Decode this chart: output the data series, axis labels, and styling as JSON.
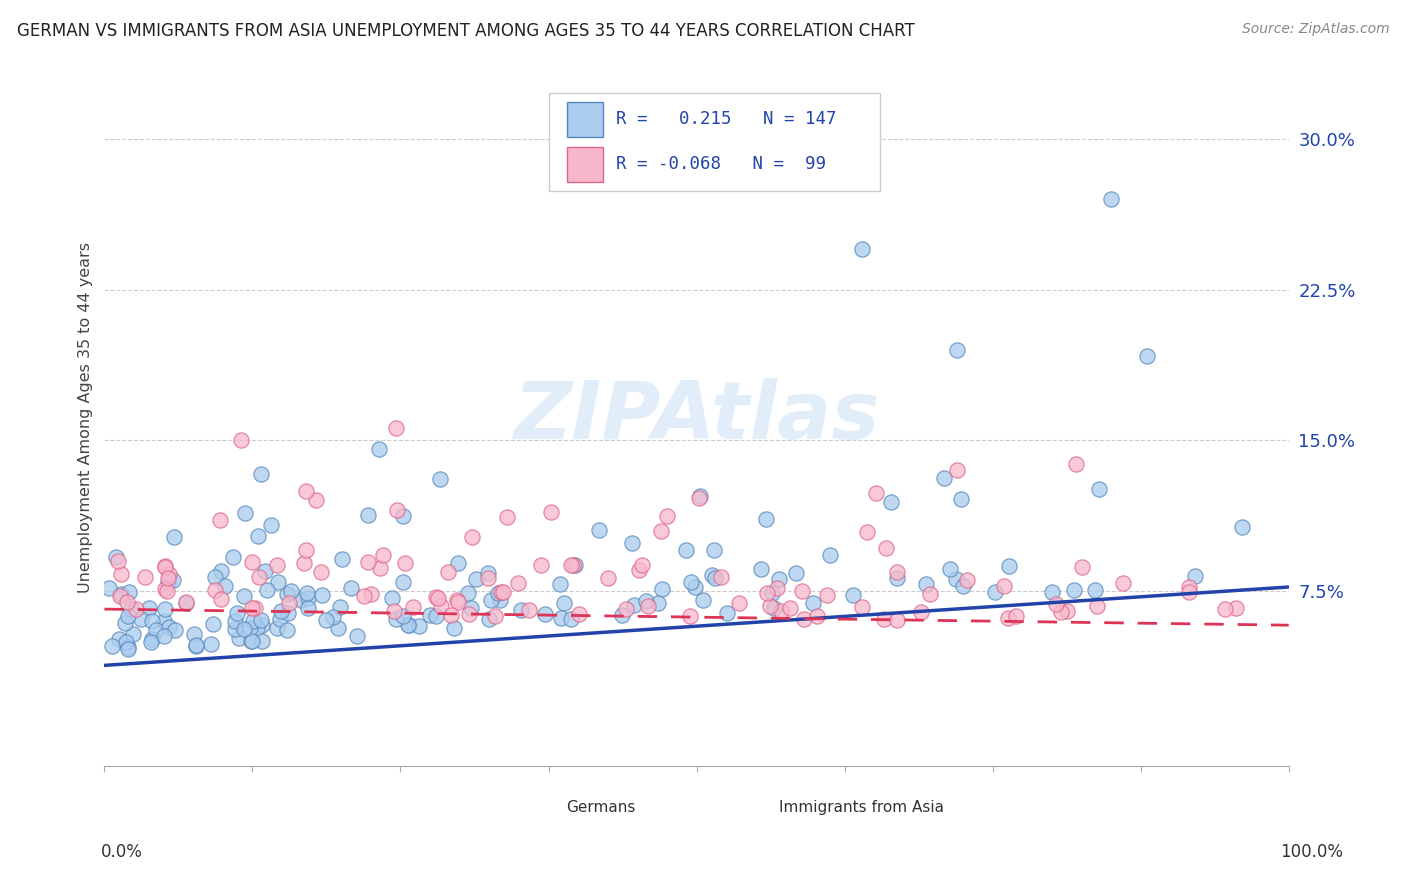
{
  "title": "GERMAN VS IMMIGRANTS FROM ASIA UNEMPLOYMENT AMONG AGES 35 TO 44 YEARS CORRELATION CHART",
  "source": "Source: ZipAtlas.com",
  "ylabel": "Unemployment Among Ages 35 to 44 years",
  "ytick_vals": [
    0.075,
    0.15,
    0.225,
    0.3
  ],
  "ytick_labels": [
    "7.5%",
    "15.0%",
    "22.5%",
    "30.0%"
  ],
  "xlim": [
    0.0,
    1.0
  ],
  "ylim": [
    -0.012,
    0.335
  ],
  "german_color": "#aaccee",
  "german_edge_color": "#5588bb",
  "asian_color": "#f8b8cc",
  "asian_edge_color": "#dd6688",
  "trend_german_color": "#2244aa",
  "trend_asian_color": "#dd3355",
  "legend_R_german": "0.215",
  "legend_N_german": "147",
  "legend_R_asian": "-0.068",
  "legend_N_asian": "99",
  "watermark": "ZIPAtlas",
  "german_trend_x0": 0.0,
  "german_trend_y0": 0.038,
  "german_trend_x1": 1.0,
  "german_trend_y1": 0.077,
  "asian_trend_x0": 0.0,
  "asian_trend_y0": 0.066,
  "asian_trend_x1": 1.0,
  "asian_trend_y1": 0.058
}
